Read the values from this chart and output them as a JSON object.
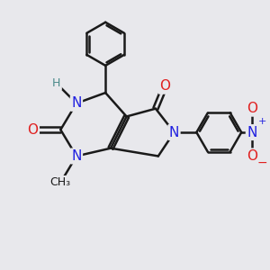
{
  "bg_color": "#e8e8ec",
  "bond_color": "#1a1a1a",
  "bond_width": 1.8,
  "atom_colors": {
    "N": "#2020e0",
    "O": "#e02020",
    "H": "#4a8a8a",
    "C": "#1a1a1a"
  },
  "font_size_atom": 11,
  "font_size_small": 9
}
